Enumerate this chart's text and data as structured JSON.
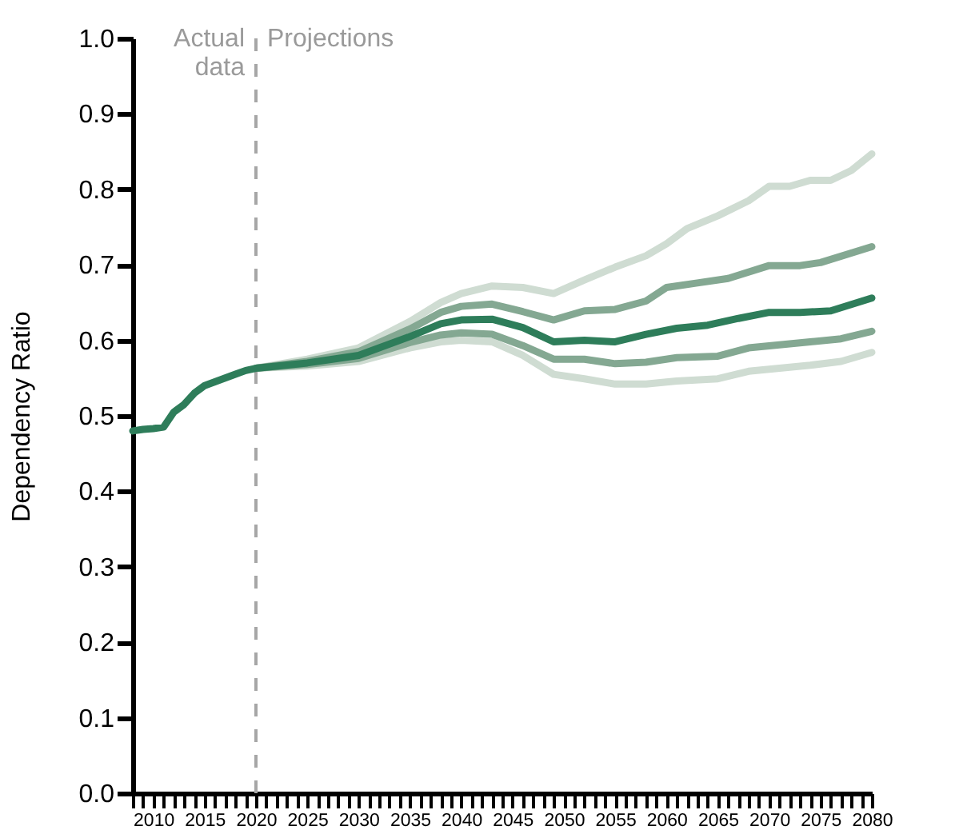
{
  "chart_data": {
    "type": "line",
    "ylabel": "Dependency Ratio",
    "xlim": [
      2008,
      2080
    ],
    "ylim": [
      0,
      1
    ],
    "xticks": [
      {
        "value": 2008,
        "label": null
      },
      {
        "value": 2009,
        "label": null
      },
      2010,
      {
        "value": 2011,
        "label": null
      },
      {
        "value": 2012,
        "label": null
      },
      {
        "value": 2013,
        "label": null
      },
      {
        "value": 2014,
        "label": null
      },
      2015,
      {
        "value": 2016,
        "label": null
      },
      {
        "value": 2017,
        "label": null
      },
      {
        "value": 2018,
        "label": null
      },
      {
        "value": 2019,
        "label": null
      },
      2020,
      {
        "value": 2021,
        "label": null
      },
      {
        "value": 2022,
        "label": null
      },
      {
        "value": 2023,
        "label": null
      },
      {
        "value": 2024,
        "label": null
      },
      2025,
      {
        "value": 2026,
        "label": null
      },
      {
        "value": 2027,
        "label": null
      },
      {
        "value": 2028,
        "label": null
      },
      {
        "value": 2029,
        "label": null
      },
      2030,
      {
        "value": 2031,
        "label": null
      },
      {
        "value": 2032,
        "label": null
      },
      {
        "value": 2033,
        "label": null
      },
      {
        "value": 2034,
        "label": null
      },
      2035,
      {
        "value": 2036,
        "label": null
      },
      {
        "value": 2037,
        "label": null
      },
      {
        "value": 2038,
        "label": null
      },
      {
        "value": 2039,
        "label": null
      },
      2040,
      {
        "value": 2041,
        "label": null
      },
      {
        "value": 2042,
        "label": null
      },
      {
        "value": 2043,
        "label": null
      },
      {
        "value": 2044,
        "label": null
      },
      2045,
      {
        "value": 2046,
        "label": null
      },
      {
        "value": 2047,
        "label": null
      },
      {
        "value": 2048,
        "label": null
      },
      {
        "value": 2049,
        "label": null
      },
      2050,
      {
        "value": 2051,
        "label": null
      },
      {
        "value": 2052,
        "label": null
      },
      {
        "value": 2053,
        "label": null
      },
      {
        "value": 2054,
        "label": null
      },
      2055,
      {
        "value": 2056,
        "label": null
      },
      {
        "value": 2057,
        "label": null
      },
      {
        "value": 2058,
        "label": null
      },
      {
        "value": 2059,
        "label": null
      },
      2060,
      {
        "value": 2061,
        "label": null
      },
      {
        "value": 2062,
        "label": null
      },
      {
        "value": 2063,
        "label": null
      },
      {
        "value": 2064,
        "label": null
      },
      2065,
      {
        "value": 2066,
        "label": null
      },
      {
        "value": 2067,
        "label": null
      },
      {
        "value": 2068,
        "label": null
      },
      {
        "value": 2069,
        "label": null
      },
      2070,
      {
        "value": 2071,
        "label": null
      },
      {
        "value": 2072,
        "label": null
      },
      {
        "value": 2073,
        "label": null
      },
      {
        "value": 2074,
        "label": null
      },
      2075,
      {
        "value": 2076,
        "label": null
      },
      {
        "value": 2077,
        "label": null
      },
      {
        "value": 2078,
        "label": null
      },
      {
        "value": 2079,
        "label": null
      },
      2080
    ],
    "yticks": [
      {
        "value": 0,
        "label": "0.0"
      },
      {
        "value": 0.1,
        "label": "0.1"
      },
      {
        "value": 0.2,
        "label": "0.2"
      },
      {
        "value": 0.3,
        "label": "0.3"
      },
      {
        "value": 0.4,
        "label": "0.4"
      },
      {
        "value": 0.5,
        "label": "0.5"
      },
      {
        "value": 0.6,
        "label": "0.6"
      },
      {
        "value": 0.7,
        "label": "0.7"
      },
      {
        "value": 0.8,
        "label": "0.8"
      },
      {
        "value": 0.9,
        "label": "0.9"
      },
      {
        "value": 1,
        "label": "1.0"
      }
    ],
    "series": [
      {
        "color": "#cfdcd2",
        "x": [
          2020,
          2025,
          2030,
          2035,
          2038,
          2040,
          2043,
          2046,
          2049,
          2052,
          2055,
          2058,
          2060,
          2062,
          2065,
          2068,
          2070,
          2072,
          2074,
          2076,
          2078,
          2080
        ],
        "values": [
          0.563,
          0.575,
          0.59,
          0.625,
          0.65,
          0.662,
          0.672,
          0.67,
          0.662,
          0.68,
          0.697,
          0.712,
          0.728,
          0.748,
          0.765,
          0.785,
          0.804,
          0.804,
          0.812,
          0.812,
          0.825,
          0.847
        ]
      },
      {
        "color": "#cfdcd2",
        "x": [
          2020,
          2025,
          2030,
          2035,
          2038,
          2040,
          2043,
          2046,
          2049,
          2052,
          2055,
          2058,
          2061,
          2065,
          2068,
          2071,
          2074,
          2077,
          2080
        ],
        "values": [
          0.563,
          0.566,
          0.572,
          0.59,
          0.598,
          0.6,
          0.598,
          0.58,
          0.555,
          0.549,
          0.542,
          0.542,
          0.546,
          0.549,
          0.559,
          0.563,
          0.567,
          0.572,
          0.584
        ]
      },
      {
        "color": "#84a892",
        "x": [
          2020,
          2025,
          2030,
          2035,
          2038,
          2040,
          2043,
          2046,
          2049,
          2052,
          2055,
          2058,
          2060,
          2063,
          2066,
          2070,
          2073,
          2075,
          2080
        ],
        "values": [
          0.563,
          0.572,
          0.585,
          0.615,
          0.637,
          0.645,
          0.648,
          0.638,
          0.627,
          0.639,
          0.641,
          0.652,
          0.67,
          0.676,
          0.682,
          0.699,
          0.699,
          0.703,
          0.724
        ]
      },
      {
        "color": "#84a892",
        "x": [
          2020,
          2025,
          2030,
          2035,
          2038,
          2040,
          2043,
          2046,
          2049,
          2052,
          2055,
          2058,
          2061,
          2065,
          2068,
          2071,
          2074,
          2077,
          2080
        ],
        "values": [
          0.563,
          0.568,
          0.576,
          0.597,
          0.607,
          0.61,
          0.608,
          0.593,
          0.575,
          0.575,
          0.569,
          0.571,
          0.577,
          0.579,
          0.59,
          0.594,
          0.598,
          0.602,
          0.612
        ]
      },
      {
        "color": "#2e7d5a",
        "x": [
          2008,
          2009,
          2010,
          2011,
          2012,
          2013,
          2014,
          2015,
          2016,
          2017,
          2018,
          2019,
          2020,
          2025,
          2030,
          2035,
          2038,
          2040,
          2043,
          2046,
          2049,
          2052,
          2055,
          2058,
          2061,
          2064,
          2067,
          2070,
          2073,
          2076,
          2080
        ],
        "values": [
          0.48,
          0.482,
          0.483,
          0.485,
          0.505,
          0.515,
          0.53,
          0.54,
          0.545,
          0.55,
          0.555,
          0.56,
          0.563,
          0.57,
          0.58,
          0.605,
          0.622,
          0.627,
          0.628,
          0.617,
          0.598,
          0.6,
          0.598,
          0.608,
          0.616,
          0.62,
          0.629,
          0.637,
          0.637,
          0.639,
          0.656
        ]
      }
    ],
    "ref_lines": [
      {
        "axis": "x",
        "value": 2020,
        "color": "#a6a6a6",
        "line_style": "dashed"
      }
    ],
    "annotations": [
      "Actual\ndata",
      "Projections"
    ]
  }
}
